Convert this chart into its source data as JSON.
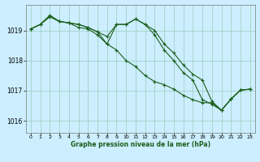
{
  "background_color": "#cceeff",
  "grid_color": "#99ccbb",
  "line_color": "#1a5e1a",
  "marker_color": "#1a5e1a",
  "xlabel": "Graphe pression niveau de la mer (hPa)",
  "xlim": [
    -0.5,
    23.5
  ],
  "ylim": [
    1015.6,
    1019.85
  ],
  "yticks": [
    1016,
    1017,
    1018,
    1019
  ],
  "xticks": [
    0,
    1,
    2,
    3,
    4,
    5,
    6,
    7,
    8,
    9,
    10,
    11,
    12,
    13,
    14,
    15,
    16,
    17,
    18,
    19,
    20,
    21,
    22,
    23
  ],
  "series1": {
    "x": [
      0,
      1,
      2,
      3,
      4,
      5,
      6,
      7,
      8,
      9,
      10,
      11,
      12,
      13,
      14,
      15,
      16,
      17,
      18,
      19,
      20,
      21,
      22,
      23
    ],
    "y": [
      1019.05,
      1019.2,
      1019.45,
      1019.3,
      1019.25,
      1019.2,
      1019.1,
      1018.95,
      1018.8,
      1019.2,
      1019.2,
      1019.38,
      1019.2,
      1019.0,
      1018.55,
      1018.25,
      1017.85,
      1017.55,
      1017.35,
      1016.65,
      1016.35,
      1016.72,
      1017.02,
      1017.05
    ]
  },
  "series2": {
    "x": [
      0,
      1,
      2,
      3,
      4,
      5,
      6,
      7,
      8,
      9,
      10,
      11,
      12,
      13,
      14,
      15,
      16,
      17,
      18,
      19,
      20,
      21,
      22,
      23
    ],
    "y": [
      1019.05,
      1019.2,
      1019.5,
      1019.3,
      1019.25,
      1019.1,
      1019.05,
      1018.85,
      1018.55,
      1018.35,
      1018.0,
      1017.8,
      1017.5,
      1017.3,
      1017.2,
      1017.05,
      1016.85,
      1016.7,
      1016.6,
      1016.6,
      1016.35,
      1016.72,
      1017.02,
      1017.05
    ]
  },
  "series3": {
    "x": [
      0,
      1,
      2,
      3,
      4,
      5,
      6,
      7,
      8,
      9,
      10,
      11,
      12,
      13,
      14,
      15,
      16,
      17,
      18,
      19,
      20,
      21,
      22,
      23
    ],
    "y": [
      1019.05,
      1019.2,
      1019.5,
      1019.3,
      1019.25,
      1019.2,
      1019.1,
      1018.95,
      1018.55,
      1019.2,
      1019.2,
      1019.38,
      1019.2,
      1018.85,
      1018.35,
      1018.0,
      1017.6,
      1017.35,
      1016.7,
      1016.55,
      1016.35,
      1016.72,
      1017.02,
      1017.05
    ]
  }
}
